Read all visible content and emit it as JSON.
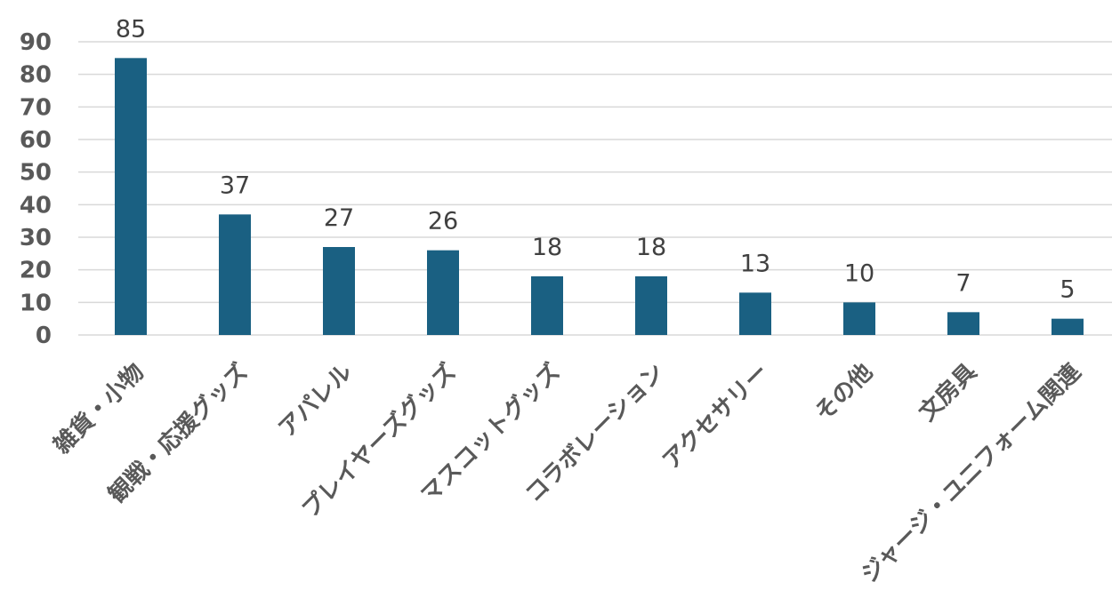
{
  "chart_data": {
    "type": "bar",
    "title": "",
    "xlabel": "",
    "ylabel": "",
    "categories": [
      "雑貨・小物",
      "観戦・応援グッズ",
      "アパレル",
      "プレイヤーズグッズ",
      "マスコットグッズ",
      "コラボレーション",
      "アクセサリー",
      "その他",
      "文房具",
      "ジャージ・ユニフォーム関連"
    ],
    "values": [
      85,
      37,
      27,
      26,
      18,
      18,
      13,
      10,
      7,
      5
    ],
    "ylim": [
      0,
      90
    ],
    "yticks": [
      0,
      10,
      20,
      30,
      40,
      50,
      60,
      70,
      80,
      90
    ],
    "grid": true,
    "legend": "none",
    "bar_color": "#1a6082"
  }
}
